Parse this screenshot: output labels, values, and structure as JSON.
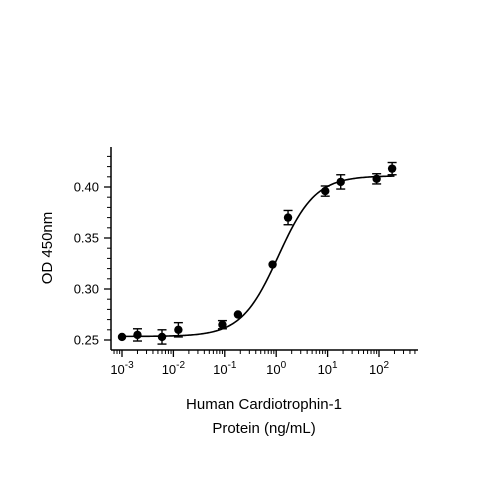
{
  "chart_data": {
    "type": "scatter",
    "xscale": "log10",
    "xlabel_lines": [
      "Human Cardiotrophin-1",
      "Protein (ng/mL)"
    ],
    "ylabel": "OD 450nm",
    "xlim": [
      0.0005,
      500
    ],
    "ylim": [
      0.245,
      0.44
    ],
    "grid": false,
    "legend": "none",
    "x_ticks": [
      {
        "value": 0.001,
        "base": "10",
        "exp": "-3"
      },
      {
        "value": 0.01,
        "base": "10",
        "exp": "-2"
      },
      {
        "value": 0.1,
        "base": "10",
        "exp": "-1"
      },
      {
        "value": 1,
        "base": "10",
        "exp": "0"
      },
      {
        "value": 10,
        "base": "10",
        "exp": "1"
      },
      {
        "value": 100,
        "base": "10",
        "exp": "2"
      }
    ],
    "y_ticks": [
      {
        "value": 0.25,
        "label": "0.25"
      },
      {
        "value": 0.3,
        "label": "0.30"
      },
      {
        "value": 0.35,
        "label": "0.35"
      },
      {
        "value": 0.4,
        "label": "0.40"
      }
    ],
    "series": [
      {
        "points": [
          {
            "x": 0.001,
            "y": 0.253,
            "err": 0
          },
          {
            "x": 0.002,
            "y": 0.255,
            "err": 0.006
          },
          {
            "x": 0.006,
            "y": 0.253,
            "err": 0.007
          },
          {
            "x": 0.0125,
            "y": 0.26,
            "err": 0.007
          },
          {
            "x": 0.09,
            "y": 0.265,
            "err": 0.004
          },
          {
            "x": 0.18,
            "y": 0.275,
            "err": 0
          },
          {
            "x": 0.85,
            "y": 0.324,
            "err": 0
          },
          {
            "x": 1.7,
            "y": 0.37,
            "err": 0.007
          },
          {
            "x": 9,
            "y": 0.396,
            "err": 0.005
          },
          {
            "x": 18,
            "y": 0.405,
            "err": 0.007
          },
          {
            "x": 90,
            "y": 0.408,
            "err": 0.005
          },
          {
            "x": 180,
            "y": 0.418,
            "err": 0.006
          }
        ],
        "fit": {
          "model": "4PL",
          "bottom": 0.2535,
          "top": 0.411,
          "ec50": 1.1,
          "hill": 1.2
        },
        "color": "#000000"
      }
    ]
  }
}
